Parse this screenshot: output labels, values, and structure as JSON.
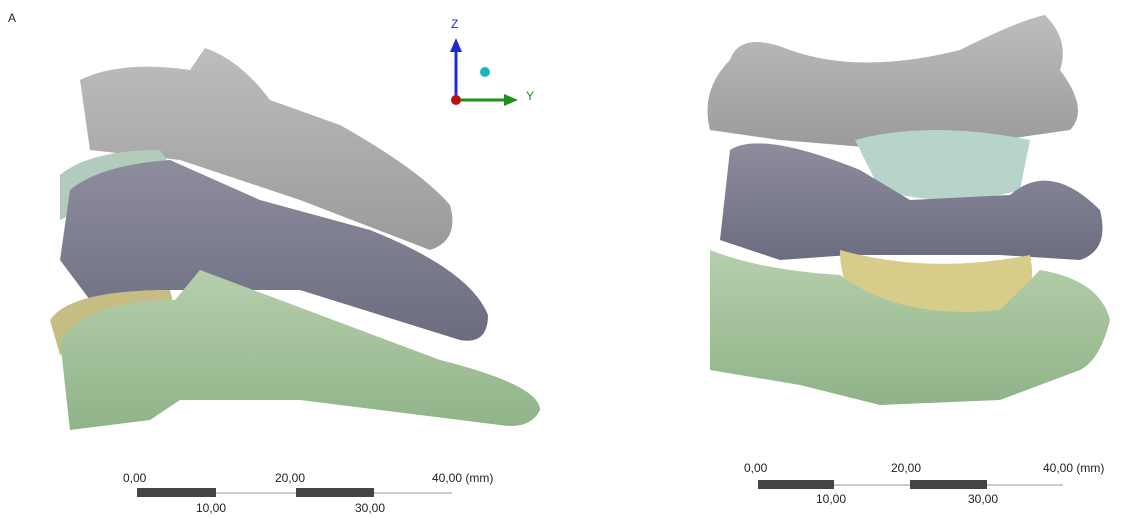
{
  "panel_label": "A",
  "triad": {
    "z": "Z",
    "y": "Y"
  },
  "scale_bars": [
    {
      "labels_top": [
        "0,00",
        "20,00",
        "40,00 (mm)"
      ],
      "labels_bottom": [
        "10,00",
        "30,00"
      ]
    },
    {
      "labels_top": [
        "0,00",
        "20,00",
        "40,00 (mm)"
      ],
      "labels_bottom": [
        "10,00",
        "30,00"
      ]
    }
  ]
}
